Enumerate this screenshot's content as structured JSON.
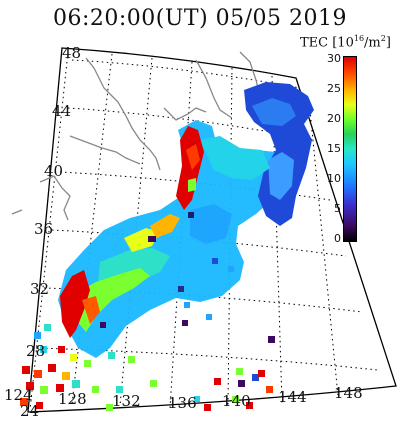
{
  "title": "06:20:00(UT)  05/05 2019",
  "colorbar": {
    "label": "TEC [10",
    "exp": "16",
    "unit": "/m",
    "unit_exp": "2",
    "label_end": "]",
    "ticks": [
      "30",
      "25",
      "20",
      "15",
      "10",
      "5",
      "0"
    ]
  },
  "lat_labels": [
    "48",
    "44",
    "40",
    "36",
    "32",
    "28",
    "24"
  ],
  "lon_labels": [
    "124",
    "128",
    "132",
    "136",
    "140",
    "144",
    "148"
  ],
  "colors": {
    "high": "#e00000",
    "mid": "#7cff30",
    "low": "#19b8ff",
    "very_low": "#1f4ad8",
    "grid": "#000000",
    "coast": "#888888"
  }
}
